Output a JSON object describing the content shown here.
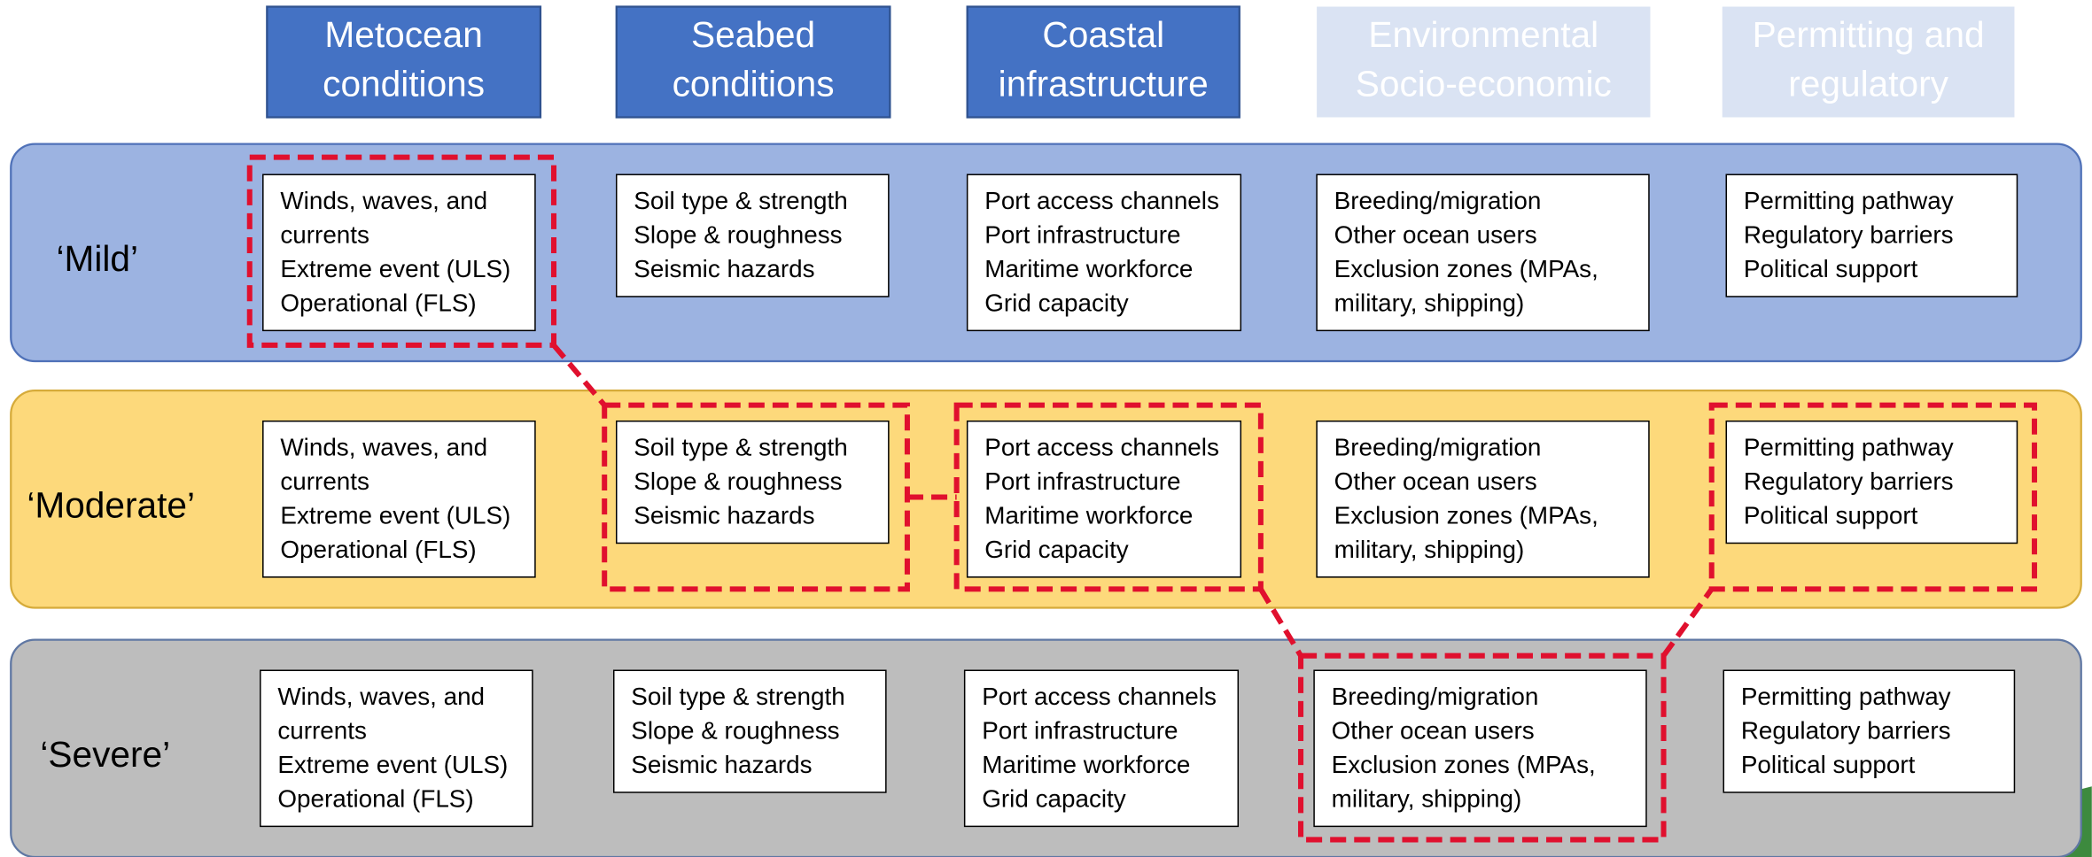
{
  "headers": [
    [
      "Metocean",
      "conditions"
    ],
    [
      "Seabed",
      "conditions"
    ],
    [
      "Coastal",
      "infrastructure"
    ],
    [
      "Environmental",
      "Socio-economic"
    ],
    [
      "Permitting and",
      "regulatory"
    ]
  ],
  "rows": [
    {
      "label": "‘Mild’",
      "cells": [
        [
          "Winds, waves, and",
          "currents",
          "Extreme event (ULS)",
          "Operational (FLS)"
        ],
        [
          "Soil type & strength",
          "Slope & roughness",
          "Seismic hazards"
        ],
        [
          "Port access channels",
          "Port infrastructure",
          "Maritime workforce",
          "Grid capacity"
        ],
        [
          "Breeding/migration",
          "Other ocean users",
          "Exclusion zones (MPAs,",
          "military, shipping)"
        ],
        [
          "Permitting pathway",
          "Regulatory barriers",
          "Political support"
        ]
      ]
    },
    {
      "label": "‘Moderate’",
      "cells": [
        [
          "Winds, waves, and",
          "currents",
          "Extreme event (ULS)",
          "Operational (FLS)"
        ],
        [
          "Soil type & strength",
          "Slope & roughness",
          "Seismic hazards"
        ],
        [
          "Port access channels",
          "Port infrastructure",
          "Maritime workforce",
          "Grid capacity"
        ],
        [
          "Breeding/migration",
          "Other ocean users",
          "Exclusion zones (MPAs,",
          "military, shipping)"
        ],
        [
          "Permitting pathway",
          "Regulatory barriers",
          "Political support"
        ]
      ]
    },
    {
      "label": "‘Severe’",
      "cells": [
        [
          "Winds, waves, and",
          "currents",
          "Extreme event (ULS)",
          "Operational (FLS)"
        ],
        [
          "Soil type & strength",
          "Slope & roughness",
          "Seismic hazards"
        ],
        [
          "Port access channels",
          "Port infrastructure",
          "Maritime workforce",
          "Grid capacity"
        ],
        [
          "Breeding/migration",
          "Other ocean users",
          "Exclusion zones (MPAs,",
          "military, shipping)"
        ],
        [
          "Permitting pathway",
          "Regulatory barriers",
          "Political support"
        ]
      ]
    }
  ]
}
